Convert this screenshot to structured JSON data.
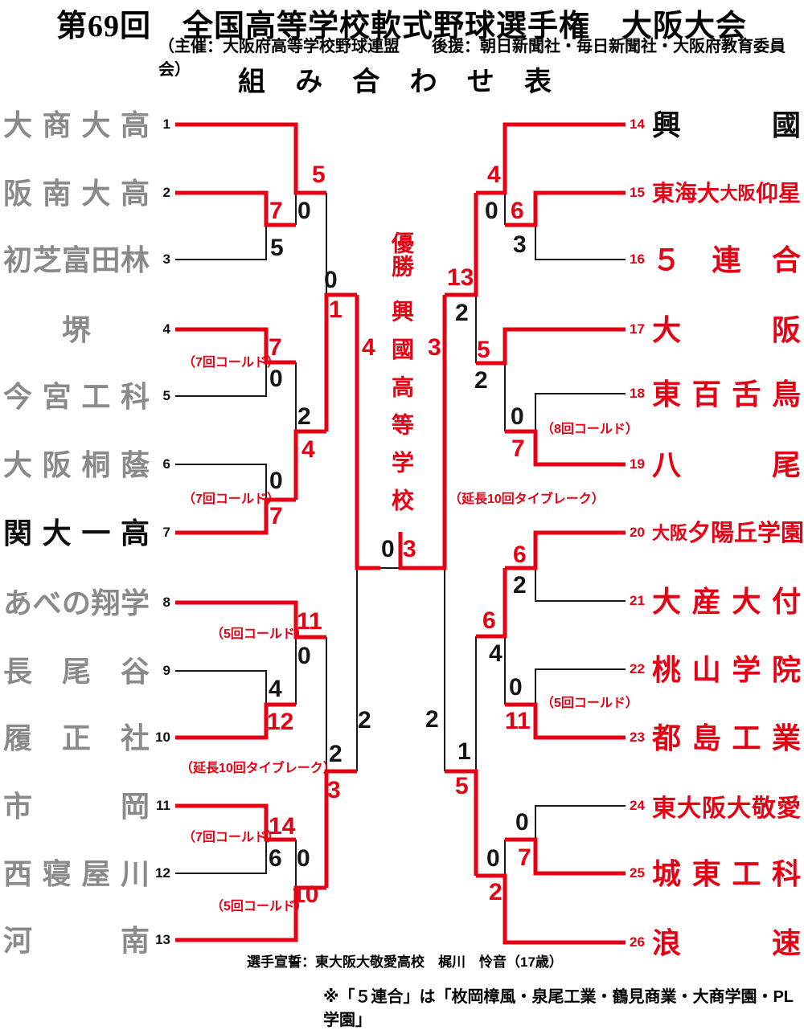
{
  "header": {
    "title": "第69回　全国高等学校軟式野球選手権　大阪大会",
    "subtitle": "（主催：大阪府高等学校野球連盟　　後援：朝日新聞社・毎日新聞社・大阪府教育委員会）",
    "bracket_label": "組み合わせ表"
  },
  "champion": {
    "label": "優勝",
    "name": "興國高等学校"
  },
  "teams": {
    "t1": {
      "seed": "1",
      "name": "大商大高"
    },
    "t2": {
      "seed": "2",
      "name": "阪南大高"
    },
    "t3": {
      "seed": "3",
      "name": "初芝富田林"
    },
    "t4": {
      "seed": "4",
      "name": "堺"
    },
    "t5": {
      "seed": "5",
      "name": "今宮工科"
    },
    "t6": {
      "seed": "6",
      "name": "大阪桐蔭"
    },
    "t7": {
      "seed": "7",
      "name": "関大一高"
    },
    "t8": {
      "seed": "8",
      "name": "あべの翔学"
    },
    "t9": {
      "seed": "9",
      "name": "長尾谷"
    },
    "t10": {
      "seed": "10",
      "name": "履正社"
    },
    "t11": {
      "seed": "11",
      "name": "市岡"
    },
    "t12": {
      "seed": "12",
      "name": "西寝屋川"
    },
    "t13": {
      "seed": "13",
      "name": "河南"
    },
    "t14": {
      "seed": "14",
      "name": "興國"
    },
    "t15": {
      "seed": "15",
      "pre": "東海大",
      "small": "大阪",
      "post": "仰星"
    },
    "t16": {
      "seed": "16",
      "name": "５連合"
    },
    "t17": {
      "seed": "17",
      "name": "大阪"
    },
    "t18": {
      "seed": "18",
      "name": "東百舌鳥"
    },
    "t19": {
      "seed": "19",
      "name": "八尾"
    },
    "t20": {
      "seed": "20",
      "small": "大阪",
      "main": "夕陽丘学園"
    },
    "t21": {
      "seed": "21",
      "name": "大産大付"
    },
    "t22": {
      "seed": "22",
      "name": "桃山学院"
    },
    "t23": {
      "seed": "23",
      "name": "都島工業"
    },
    "t24": {
      "seed": "24",
      "name": "東大阪大敬愛"
    },
    "t25": {
      "seed": "25",
      "name": "城東工科"
    },
    "t26": {
      "seed": "26",
      "name": "浪速"
    }
  },
  "scores": {
    "s1": "5",
    "s2": "7",
    "s3": "0",
    "s4": "5",
    "s5": "0",
    "s6": "1",
    "s7": "7",
    "s8": "0",
    "s9": "2",
    "s10": "4",
    "s11": "0",
    "s12": "7",
    "s13": "4",
    "s14": "0",
    "s15": "3",
    "s16": "11",
    "s17": "0",
    "s18": "4",
    "s19": "12",
    "s20": "2",
    "s21": "3",
    "s22": "2",
    "s23": "14",
    "s24": "6",
    "s25": "0",
    "s26": "10",
    "s27": "4",
    "s28": "0",
    "s29": "6",
    "s30": "3",
    "s31": "13",
    "s32": "2",
    "s33": "5",
    "s34": "2",
    "s35": "0",
    "s36": "7",
    "s37": "3",
    "s38": "2",
    "s39": "6",
    "s40": "2",
    "s41": "6",
    "s42": "4",
    "s43": "0",
    "s44": "11",
    "s45": "1",
    "s46": "5",
    "s47": "0",
    "s48": "7",
    "s49": "0",
    "s50": "2"
  },
  "annotations": {
    "a1": "（7回コールド）",
    "a2": "（7回コールド）",
    "a3": "（5回コールド）",
    "a4": "（延長10回タイブレーク）",
    "a5": "（7回コールド）",
    "a6": "（5回コールド）",
    "a7": "（8回コールド）",
    "a8": "（延長10回タイブレーク）",
    "a9": "（5回コールド）"
  },
  "footer": {
    "pledge": "選手宣誓：東大阪大敬愛高校　梶川　怜音（17歳）",
    "note": "※「５連合」は「枚岡樟風・泉尾工業・鶴見商業・大商学園・PL学園」"
  },
  "colors": {
    "accent_red": "#e60014",
    "team_gray": "#8a8a8a",
    "line_black": "#1a1a1a"
  }
}
